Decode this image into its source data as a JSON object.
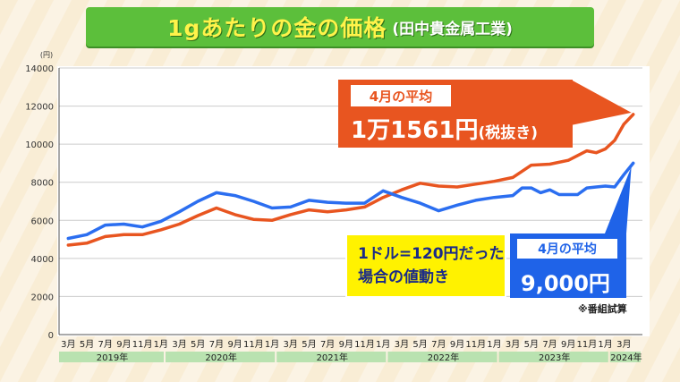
{
  "header": {
    "title": "1gあたりの金の価格",
    "source": "(田中貴金属工業)"
  },
  "callouts": {
    "red": {
      "caption": "4月の平均",
      "value": "1万1561円",
      "note": "(税抜き)"
    },
    "yellow": {
      "line1": "1ドル=120円だった",
      "line2": "場合の値動き"
    },
    "blue": {
      "caption": "4月の平均",
      "value": "9,000円"
    }
  },
  "footnote": "※番組試算",
  "colors": {
    "series_actual": "#e85520",
    "series_fixed_rate": "#2b6ef0",
    "title_bg": "#5cbf3b",
    "title_text": "#fff34a",
    "year_band": "#b9e2b0"
  },
  "chart_data": {
    "type": "line",
    "title": "1gあたりの金の価格",
    "ylabel": "(円)",
    "ylim": [
      0,
      14000
    ],
    "yticks": [
      0,
      2000,
      4000,
      6000,
      8000,
      10000,
      12000,
      14000
    ],
    "grid": true,
    "x_tick_labels": [
      "3月",
      "5月",
      "7月",
      "9月",
      "11月",
      "1月",
      "3月",
      "5月",
      "7月",
      "9月",
      "11月",
      "1月",
      "3月",
      "5月",
      "7月",
      "9月",
      "11月",
      "1月",
      "3月",
      "5月",
      "7月",
      "9月",
      "11月",
      "1月",
      "3月",
      "5月",
      "7月",
      "9月",
      "11月",
      "1月",
      "3月"
    ],
    "x_tick_months": [
      2,
      4,
      6,
      8,
      10,
      12,
      14,
      16,
      18,
      20,
      22,
      24,
      26,
      28,
      30,
      32,
      34,
      36,
      38,
      40,
      42,
      44,
      46,
      48,
      50,
      52,
      54,
      56,
      58,
      60,
      62
    ],
    "year_labels": [
      {
        "label": "2019年",
        "from": 0,
        "to": 11
      },
      {
        "label": "2020年",
        "from": 12,
        "to": 23
      },
      {
        "label": "2021年",
        "from": 24,
        "to": 35
      },
      {
        "label": "2022年",
        "from": 36,
        "to": 47
      },
      {
        "label": "2023年",
        "from": 48,
        "to": 59
      },
      {
        "label": "2024年",
        "from": 60,
        "to": 63
      }
    ],
    "series": [
      {
        "name": "",
        "color_key": "series_actual",
        "points": [
          [
            2,
            4700
          ],
          [
            4,
            4800
          ],
          [
            6,
            5150
          ],
          [
            8,
            5250
          ],
          [
            10,
            5250
          ],
          [
            12,
            5500
          ],
          [
            14,
            5800
          ],
          [
            16,
            6250
          ],
          [
            18,
            6650
          ],
          [
            20,
            6300
          ],
          [
            22,
            6050
          ],
          [
            24,
            6000
          ],
          [
            26,
            6300
          ],
          [
            28,
            6550
          ],
          [
            30,
            6450
          ],
          [
            32,
            6550
          ],
          [
            34,
            6700
          ],
          [
            36,
            7200
          ],
          [
            38,
            7600
          ],
          [
            40,
            7950
          ],
          [
            42,
            7800
          ],
          [
            44,
            7750
          ],
          [
            46,
            7900
          ],
          [
            48,
            8050
          ],
          [
            50,
            8250
          ],
          [
            52,
            8900
          ],
          [
            54,
            8950
          ],
          [
            56,
            9150
          ],
          [
            58,
            9650
          ],
          [
            59,
            9550
          ],
          [
            60,
            9750
          ],
          [
            61,
            10200
          ],
          [
            62,
            11050
          ],
          [
            63,
            11561
          ]
        ]
      },
      {
        "name": "",
        "color_key": "series_fixed_rate",
        "points": [
          [
            2,
            5050
          ],
          [
            4,
            5250
          ],
          [
            6,
            5750
          ],
          [
            8,
            5800
          ],
          [
            10,
            5650
          ],
          [
            12,
            5950
          ],
          [
            14,
            6450
          ],
          [
            16,
            7000
          ],
          [
            18,
            7450
          ],
          [
            20,
            7300
          ],
          [
            22,
            7000
          ],
          [
            24,
            6650
          ],
          [
            26,
            6700
          ],
          [
            28,
            7050
          ],
          [
            30,
            6950
          ],
          [
            32,
            6900
          ],
          [
            34,
            6900
          ],
          [
            36,
            7550
          ],
          [
            38,
            7200
          ],
          [
            40,
            6900
          ],
          [
            42,
            6500
          ],
          [
            44,
            6800
          ],
          [
            46,
            7050
          ],
          [
            48,
            7200
          ],
          [
            50,
            7300
          ],
          [
            51,
            7700
          ],
          [
            52,
            7700
          ],
          [
            53,
            7450
          ],
          [
            54,
            7600
          ],
          [
            55,
            7350
          ],
          [
            56,
            7350
          ],
          [
            57,
            7350
          ],
          [
            58,
            7700
          ],
          [
            59,
            7750
          ],
          [
            60,
            7800
          ],
          [
            61,
            7750
          ],
          [
            62,
            8400
          ],
          [
            63,
            9000
          ]
        ]
      }
    ]
  }
}
